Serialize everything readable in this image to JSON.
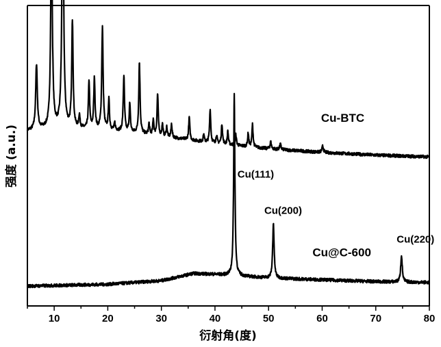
{
  "chart_data": {
    "type": "line",
    "title": "",
    "xlabel": "衍射角(度)",
    "ylabel": "强度 (a.u.)",
    "xlim": [
      5,
      80
    ],
    "x_ticks": [
      "10",
      "20",
      "30",
      "40",
      "50",
      "60",
      "70",
      "80"
    ],
    "y_ticks_shown": false,
    "grid": false,
    "legend": "none",
    "line_color": "#000000",
    "series": [
      {
        "name": "Cu-BTC",
        "baseline": [
          [
            5,
            1.72
          ],
          [
            10,
            1.75
          ],
          [
            20,
            1.73
          ],
          [
            30,
            1.66
          ],
          [
            40,
            1.58
          ],
          [
            50,
            1.52
          ],
          [
            60,
            1.48
          ],
          [
            70,
            1.45
          ],
          [
            80,
            1.43
          ]
        ],
        "peaks": [
          {
            "x": 6.7,
            "y": 0.72,
            "w": 0.18
          },
          {
            "x": 9.5,
            "y": 2.23,
            "w": 0.18
          },
          {
            "x": 11.6,
            "y": 2.95,
            "w": 0.18
          },
          {
            "x": 13.4,
            "y": 1.18,
            "w": 0.15
          },
          {
            "x": 14.7,
            "y": 0.14,
            "w": 0.14
          },
          {
            "x": 16.5,
            "y": 0.52,
            "w": 0.14
          },
          {
            "x": 17.5,
            "y": 0.56,
            "w": 0.14
          },
          {
            "x": 19.0,
            "y": 1.13,
            "w": 0.15
          },
          {
            "x": 20.2,
            "y": 0.33,
            "w": 0.13
          },
          {
            "x": 21.3,
            "y": 0.08,
            "w": 0.12
          },
          {
            "x": 23.0,
            "y": 0.62,
            "w": 0.14
          },
          {
            "x": 24.1,
            "y": 0.31,
            "w": 0.13
          },
          {
            "x": 25.9,
            "y": 0.79,
            "w": 0.14
          },
          {
            "x": 27.7,
            "y": 0.12,
            "w": 0.12
          },
          {
            "x": 28.5,
            "y": 0.17,
            "w": 0.12
          },
          {
            "x": 29.3,
            "y": 0.46,
            "w": 0.13
          },
          {
            "x": 30.2,
            "y": 0.13,
            "w": 0.12
          },
          {
            "x": 31.0,
            "y": 0.11,
            "w": 0.12
          },
          {
            "x": 31.9,
            "y": 0.15,
            "w": 0.12
          },
          {
            "x": 35.2,
            "y": 0.25,
            "w": 0.13
          },
          {
            "x": 37.9,
            "y": 0.08,
            "w": 0.12
          },
          {
            "x": 39.1,
            "y": 0.37,
            "w": 0.13
          },
          {
            "x": 40.3,
            "y": 0.09,
            "w": 0.12
          },
          {
            "x": 41.3,
            "y": 0.22,
            "w": 0.13
          },
          {
            "x": 42.4,
            "y": 0.15,
            "w": 0.12
          },
          {
            "x": 43.9,
            "y": 0.12,
            "w": 0.12
          },
          {
            "x": 46.2,
            "y": 0.15,
            "w": 0.12
          },
          {
            "x": 47.0,
            "y": 0.25,
            "w": 0.13
          },
          {
            "x": 50.4,
            "y": 0.08,
            "w": 0.14
          },
          {
            "x": 52.2,
            "y": 0.06,
            "w": 0.14
          },
          {
            "x": 60.1,
            "y": 0.07,
            "w": 0.16
          }
        ]
      },
      {
        "name": "Cu@C-600",
        "baseline": [
          [
            5,
            0.0
          ],
          [
            20,
            0.02
          ],
          [
            30,
            0.06
          ],
          [
            36,
            0.14
          ],
          [
            40,
            0.13
          ],
          [
            50,
            0.09
          ],
          [
            60,
            0.07
          ],
          [
            70,
            0.05
          ],
          [
            80,
            0.04
          ]
        ],
        "peaks": [
          {
            "x": 43.6,
            "y": 2.02,
            "w": 0.14
          },
          {
            "x": 50.9,
            "y": 0.61,
            "w": 0.16
          },
          {
            "x": 74.8,
            "y": 0.3,
            "w": 0.17
          }
        ]
      }
    ],
    "annotations": [
      {
        "text": "Cu-BTC",
        "x": 59.8,
        "y": 1.82,
        "size": 17
      },
      {
        "text": "Cu(111)",
        "x": 44.2,
        "y": 1.2,
        "size": 15
      },
      {
        "text": "Cu(200)",
        "x": 49.2,
        "y": 0.8,
        "size": 15
      },
      {
        "text": "Cu@C-600",
        "x": 58.2,
        "y": 0.33,
        "size": 17
      },
      {
        "text": "Cu(220)",
        "x": 73.9,
        "y": 0.48,
        "size": 15
      }
    ]
  }
}
